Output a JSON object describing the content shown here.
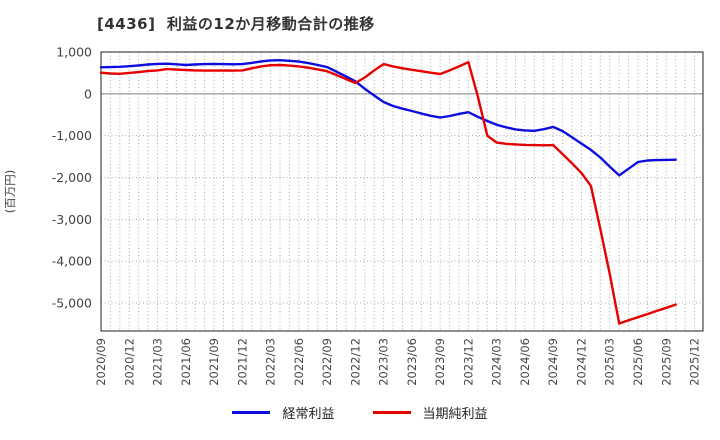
{
  "title": "[4436]  利益の12か月移動合計の推移",
  "y_axis_label": "(百万円)",
  "legend": [
    {
      "label": "経常利益",
      "color": "#0d0de0"
    },
    {
      "label": "当期純利益",
      "color": "#e60000"
    }
  ],
  "colors": {
    "frame": "#222222",
    "grid": "#aaaaaa",
    "zero_line": "#808080",
    "tick_text": "#444444"
  },
  "chart_data": {
    "type": "line",
    "title": "[4436]  利益の12か月移動合計の推移",
    "ylabel": "(百万円)",
    "unit": "百万円",
    "grid": "monthly vertical dotted; horizontal dotted each 1000",
    "legend_position": "bottom-center",
    "ylim": [
      -5670,
      1000
    ],
    "yticks": [
      1000,
      0,
      -1000,
      -2000,
      -3000,
      -4000,
      -5000
    ],
    "ytick_labels": [
      "1,000",
      "0",
      "-1,000",
      "-2,000",
      "-3,000",
      "-4,000",
      "-5,000"
    ],
    "x_tick_labels": [
      "2020/09",
      "2020/12",
      "2021/03",
      "2021/06",
      "2021/09",
      "2021/12",
      "2022/03",
      "2022/06",
      "2022/09",
      "2022/12",
      "2023/03",
      "2023/06",
      "2023/09",
      "2023/12",
      "2024/03",
      "2024/06",
      "2024/09",
      "2024/12",
      "2025/03",
      "2025/06",
      "2025/09",
      "2025/12"
    ],
    "x_total_months": 63.9,
    "x": [
      "2020/09",
      "2020/10",
      "2020/11",
      "2020/12",
      "2021/01",
      "2021/02",
      "2021/03",
      "2021/04",
      "2021/05",
      "2021/06",
      "2021/07",
      "2021/08",
      "2021/09",
      "2021/10",
      "2021/11",
      "2021/12",
      "2022/01",
      "2022/02",
      "2022/03",
      "2022/04",
      "2022/05",
      "2022/06",
      "2022/07",
      "2022/08",
      "2022/09",
      "2022/10",
      "2022/11",
      "2022/12",
      "2023/01",
      "2023/02",
      "2023/03",
      "2023/04",
      "2023/05",
      "2023/06",
      "2023/07",
      "2023/08",
      "2023/09",
      "2023/10",
      "2023/11",
      "2023/12",
      "2024/01",
      "2024/02",
      "2024/03",
      "2024/04",
      "2024/05",
      "2024/06",
      "2024/07",
      "2024/08",
      "2024/09",
      "2024/10",
      "2024/11",
      "2024/12",
      "2025/01",
      "2025/02",
      "2025/03",
      "2025/04",
      "2025/05",
      "2025/06",
      "2025/07",
      "2025/08",
      "2025/09",
      "2025/10"
    ],
    "series": [
      {
        "name": "経常利益",
        "color": "#0d0de0",
        "values": [
          635,
          640,
          645,
          660,
          680,
          700,
          715,
          720,
          705,
          690,
          700,
          710,
          715,
          710,
          705,
          710,
          740,
          775,
          800,
          805,
          790,
          770,
          735,
          690,
          640,
          530,
          420,
          300,
          120,
          -40,
          -195,
          -290,
          -355,
          -410,
          -470,
          -525,
          -565,
          -530,
          -480,
          -440,
          -550,
          -650,
          -740,
          -800,
          -850,
          -875,
          -885,
          -845,
          -790,
          -890,
          -1040,
          -1190,
          -1340,
          -1520,
          -1740,
          -1950,
          -1790,
          -1630,
          -1595,
          -1585,
          -1580,
          -1575
        ]
      },
      {
        "name": "当期純利益",
        "color": "#e60000",
        "values": [
          505,
          485,
          480,
          500,
          520,
          545,
          560,
          590,
          580,
          570,
          560,
          555,
          555,
          560,
          555,
          560,
          610,
          655,
          685,
          690,
          675,
          655,
          625,
          585,
          540,
          450,
          355,
          260,
          390,
          560,
          710,
          655,
          610,
          575,
          540,
          505,
          475,
          560,
          655,
          755,
          -60,
          -1000,
          -1165,
          -1195,
          -1210,
          -1220,
          -1225,
          -1230,
          -1225,
          -1440,
          -1660,
          -1895,
          -2200,
          -3230,
          -4300,
          -5490,
          -5415,
          -5340,
          -5265,
          -5190,
          -5115,
          -5040
        ]
      }
    ]
  }
}
